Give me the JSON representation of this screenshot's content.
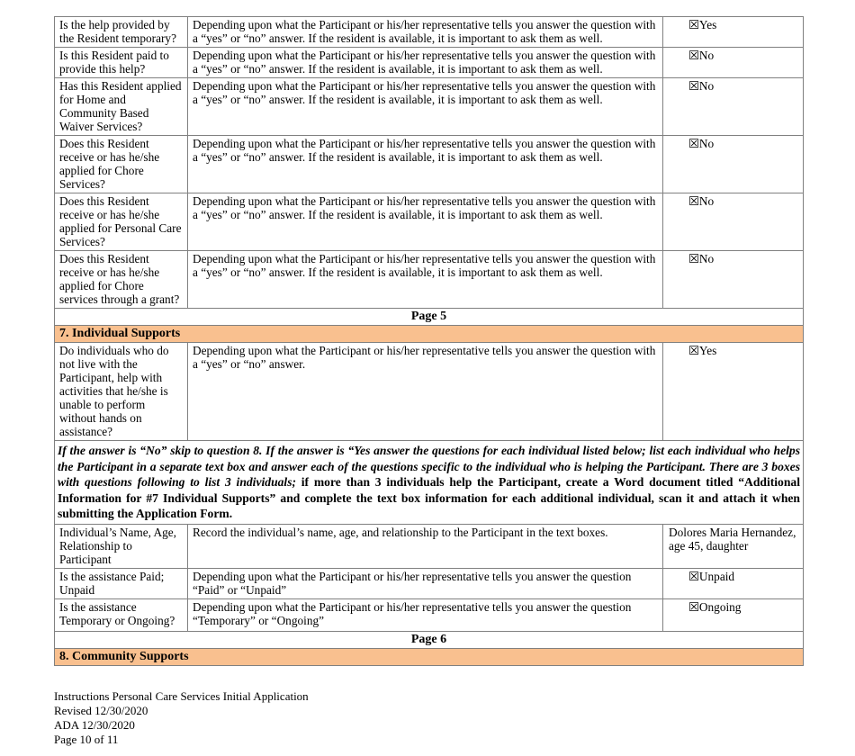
{
  "rows_a": [
    {
      "q": "Is the help provided by the Resident temporary?",
      "i": "Depending upon what the Participant or his/her representative tells you answer the question with a “yes” or “no” answer. If the resident is available, it is important to ask them as well.",
      "a": "☒Yes"
    },
    {
      "q": "Is this Resident paid to provide this help?",
      "i": "Depending upon what the Participant or his/her representative tells you answer the question with a “yes” or “no” answer. If the resident is available, it is important to ask them as well.",
      "a": "☒No"
    },
    {
      "q": "Has this Resident applied for Home and Community Based Waiver Services?",
      "i": "Depending upon what the Participant or his/her representative tells you answer the question with a “yes” or “no” answer. If the resident is available, it is important to ask them as well.",
      "a": "☒No"
    },
    {
      "q": "Does this Resident receive or has he/she applied for Chore Services?",
      "i": "Depending upon what the Participant or his/her representative tells you answer the question with a “yes” or “no” answer. If the resident is available, it is important to ask them as well.",
      "a": "☒No"
    },
    {
      "q": "Does this Resident receive or has he/she applied for Personal Care Services?",
      "i": "Depending upon what the Participant or his/her representative tells you answer the question with a “yes” or “no” answer. If the resident is available, it is important to ask them as well.",
      "a": "☒No"
    },
    {
      "q": "Does this Resident receive or has he/she applied for Chore services through a grant?",
      "i": "Depending upon what the Participant or his/her representative tells you answer the question with a “yes” or “no” answer. If the resident is available, it is important to ask them as well.",
      "a": "☒No"
    }
  ],
  "page5": "Page 5",
  "section7": "7.   Individual Supports",
  "row7": {
    "q": "Do individuals who do not live with the Participant, help with activities that he/she is unable to perform without hands on assistance?",
    "i": "Depending upon what the Participant or his/her representative tells you answer the question with a “yes” or “no” answer.",
    "a": "☒Yes"
  },
  "para": {
    "italic": "If the answer is “No” skip to question 8. If the answer is “Yes answer the questions for each individual listed below; list each individual who helps the Participant in a separate text box and answer each of the questions specific to the individual who is helping the Participant. There are 3 boxes with questions following to list 3 individuals;",
    "bold": " if more than 3 individuals help the Participant, create a Word document titled “Additional Information for #7 Individual Supports” and complete the text box information for each additional individual, scan it and attach it when submitting the Application Form."
  },
  "rows_b": [
    {
      "q": "Individual’s Name, Age, Relationship to Participant",
      "i": "Record the individual’s name, age, and relationship to the Participant in the text boxes.",
      "a": "Dolores Maria Hernandez, age 45, daughter"
    },
    {
      "q": "Is the assistance Paid; Unpaid",
      "i": "Depending upon what the Participant or his/her representative tells you answer the question “Paid” or “Unpaid”",
      "a": "☒Unpaid"
    },
    {
      "q": "Is the assistance Temporary or Ongoing?",
      "i": "Depending upon what the Participant or his/her representative tells you answer the question “Temporary” or “Ongoing”",
      "a": "☒Ongoing"
    }
  ],
  "page6": "Page 6",
  "section8": "8.   Community Supports",
  "footer": [
    "Instructions Personal Care Services Initial Application",
    "Revised 12/30/2020",
    "ADA 12/30/2020",
    "Page 10 of 11"
  ]
}
